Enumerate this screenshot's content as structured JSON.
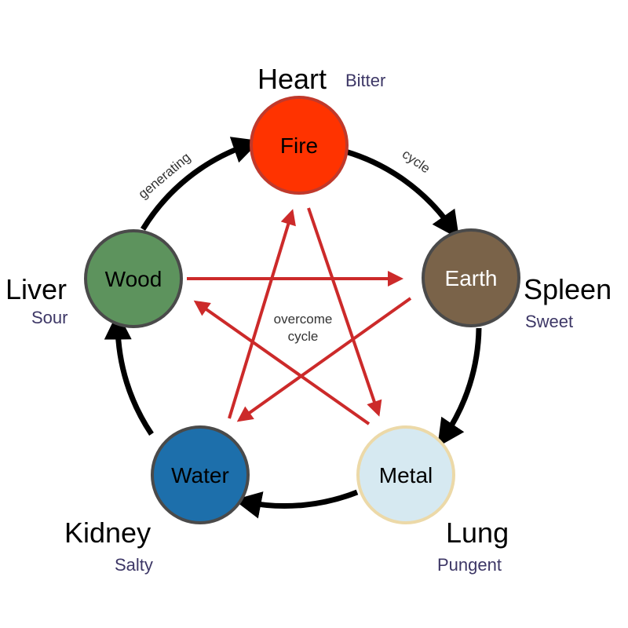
{
  "colors": {
    "cycle_arrow": "#000000",
    "overcome_arrow": "#cc2a2a",
    "taste_text": "#3d3766",
    "node_border": "#4a4a4a"
  },
  "elements": {
    "fire": {
      "label": "Fire",
      "organ": "Heart",
      "taste": "Bitter",
      "fill": "#ff3300",
      "border": "#c0392b",
      "text_color": "#000000"
    },
    "earth": {
      "label": "Earth",
      "organ": "Spleen",
      "taste": "Sweet",
      "fill": "#7a6349",
      "border": "#4a4a4a",
      "text_color": "#ffffff"
    },
    "metal": {
      "label": "Metal",
      "organ": "Lung",
      "taste": "Pungent",
      "fill": "#d6e9f1",
      "border": "#ecd9a8",
      "text_color": "#000000"
    },
    "water": {
      "label": "Water",
      "organ": "Kidney",
      "taste": "Salty",
      "fill": "#1d6fab",
      "border": "#4a4a4a",
      "text_color": "#000000"
    },
    "wood": {
      "label": "Wood",
      "organ": "Liver",
      "taste": "Sour",
      "fill": "#5d935d",
      "border": "#4a4a4a",
      "text_color": "#000000"
    }
  },
  "cycle_labels": {
    "generating": "generating",
    "cycle": "cycle",
    "overcome_line1": "overcome",
    "overcome_line2": "cycle"
  }
}
